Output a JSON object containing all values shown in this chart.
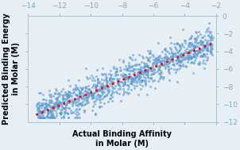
{
  "x_min": -14,
  "x_max": -2,
  "y_min": -12,
  "y_max": 0,
  "scatter_color": "#5B9BD5",
  "scatter_alpha": 0.6,
  "scatter_size": 5,
  "line_color": "#FF0000",
  "line_width": 2.0,
  "xlabel": "Actual Binding Affinity\nin Molar (M)",
  "ylabel": "Predicted Binding Energy\nin Molar (M)",
  "xlabel_fontsize": 7,
  "ylabel_fontsize": 7,
  "tick_fontsize": 6.5,
  "tick_color": "#8AABB8",
  "background_color": "#E8EFF4",
  "border_color": "#B0C4CF",
  "seed": 42,
  "n_points": 1200,
  "slope": 0.72,
  "intercept": -1.5,
  "noise_std": 0.95
}
